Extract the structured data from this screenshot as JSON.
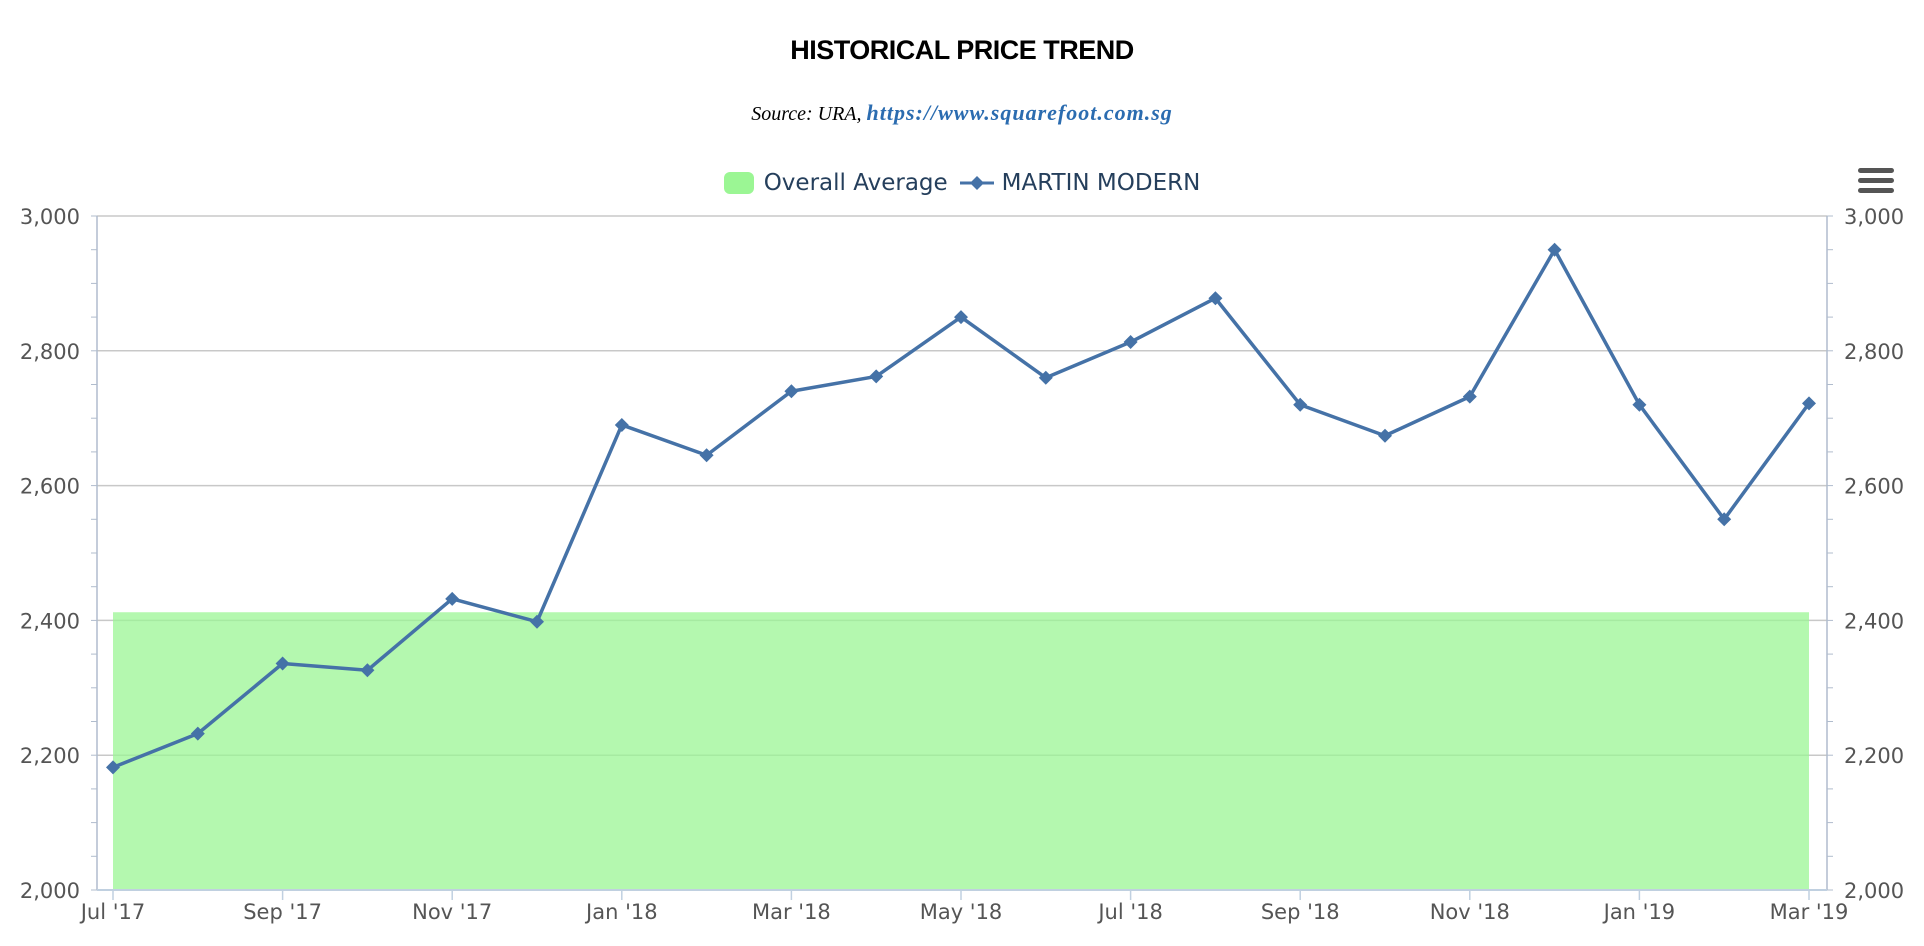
{
  "chart_data": {
    "type": "line",
    "title": "HISTORICAL PRICE TREND",
    "subtitle": {
      "prefix": "Source: URA, ",
      "link": "https://www.squarefoot.com.sg"
    },
    "categories": [
      "Jul '17",
      "Aug '17",
      "Sep '17",
      "Oct '17",
      "Nov '17",
      "Dec '17",
      "Jan '18",
      "Feb '18",
      "Mar '18",
      "Apr '18",
      "May '18",
      "Jun '18",
      "Jul '18",
      "Aug '18",
      "Sep '18",
      "Oct '18",
      "Nov '18",
      "Dec '18",
      "Jan '19",
      "Feb '19",
      "Mar '19"
    ],
    "x_tick_labels": [
      "Jul '17",
      "Sep '17",
      "Nov '17",
      "Jan '18",
      "Mar '18",
      "May '18",
      "Jul '18",
      "Sep '18",
      "Nov '18",
      "Jan '19",
      "Mar '19"
    ],
    "series": [
      {
        "name": "Overall Average",
        "kind": "area",
        "color": "#9bf694",
        "values": [
          2412,
          2412,
          2412,
          2412,
          2412,
          2412,
          2412,
          2412,
          2412,
          2412,
          2412,
          2412,
          2412,
          2412,
          2412,
          2412,
          2412,
          2412,
          2412,
          2412,
          2412
        ]
      },
      {
        "name": "MARTIN MODERN",
        "kind": "line",
        "marker": "diamond",
        "color": "#4572a7",
        "values": [
          2182,
          2232,
          2336,
          2326,
          2432,
          2398,
          2690,
          2645,
          2740,
          2762,
          2850,
          2760,
          2813,
          2878,
          2720,
          2674,
          2732,
          2950,
          2720,
          2550,
          2722
        ]
      }
    ],
    "ylim": [
      2000,
      3000
    ],
    "y_ticks": [
      "2,000",
      "2,200",
      "2,400",
      "2,600",
      "2,800",
      "3,000"
    ],
    "y_tick_values": [
      2000,
      2200,
      2400,
      2600,
      2800,
      3000
    ],
    "secondary_y_axis": true,
    "grid": true,
    "legend_position": "top-center"
  }
}
